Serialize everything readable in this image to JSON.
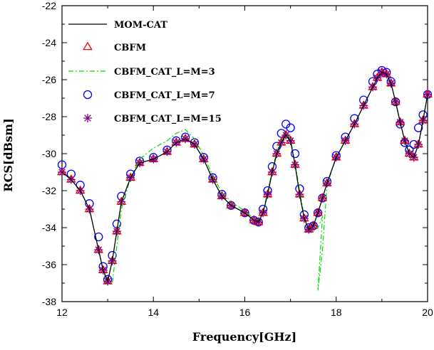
{
  "chart_data": {
    "type": "line",
    "title": "",
    "xlabel": "Frequency[GHz]",
    "ylabel": "RCS[dBsm]",
    "xlim": [
      12,
      20
    ],
    "ylim": [
      -38,
      -22
    ],
    "xticks": [
      12,
      14,
      16,
      18,
      20
    ],
    "yticks": [
      -38,
      -36,
      -34,
      -32,
      -30,
      -28,
      -26,
      -24,
      -22
    ],
    "xtick_labels": [
      "12",
      "14",
      "16",
      "18",
      "20"
    ],
    "ytick_labels": [
      "-38",
      "-36",
      "-34",
      "-32",
      "-30",
      "-28",
      "-26",
      "-24",
      "-22"
    ],
    "legend_position": "top-left",
    "series_colors": {
      "MOM-CAT": "#000000",
      "CBFM": "#ff0000",
      "CBFM_CAT_L=M=3": "#00dd00",
      "CBFM_CAT_L=M=7": "#0000ff",
      "CBFM_CAT_L=M=15": "#800080"
    },
    "series": [
      {
        "name": "MOM-CAT",
        "style": "solid line",
        "x": [
          12.0,
          12.2,
          12.4,
          12.6,
          12.8,
          12.9,
          13.0,
          13.1,
          13.2,
          13.3,
          13.5,
          13.7,
          14.0,
          14.3,
          14.5,
          14.7,
          14.9,
          15.1,
          15.3,
          15.5,
          15.7,
          16.0,
          16.2,
          16.3,
          16.4,
          16.5,
          16.6,
          16.7,
          16.8,
          16.9,
          17.0,
          17.1,
          17.2,
          17.3,
          17.4,
          17.5,
          17.6,
          17.7,
          17.8,
          18.0,
          18.2,
          18.4,
          18.6,
          18.8,
          18.9,
          19.0,
          19.1,
          19.2,
          19.3,
          19.4,
          19.5,
          19.6,
          19.7,
          19.8,
          19.9,
          20.0
        ],
        "values": [
          -31.0,
          -31.4,
          -32.0,
          -33.0,
          -35.2,
          -36.3,
          -36.9,
          -35.8,
          -34.2,
          -32.6,
          -31.3,
          -30.5,
          -30.3,
          -29.9,
          -29.4,
          -29.2,
          -29.5,
          -30.3,
          -31.4,
          -32.3,
          -32.8,
          -33.2,
          -33.6,
          -33.7,
          -33.2,
          -32.2,
          -31.0,
          -30.0,
          -29.4,
          -29.0,
          -29.3,
          -30.6,
          -32.2,
          -33.5,
          -34.1,
          -33.9,
          -33.2,
          -32.4,
          -31.6,
          -30.2,
          -29.3,
          -28.4,
          -27.4,
          -26.4,
          -25.9,
          -25.6,
          -25.7,
          -26.2,
          -27.2,
          -28.3,
          -29.3,
          -30.0,
          -30.2,
          -29.5,
          -28.2,
          -26.8
        ]
      },
      {
        "name": "CBFM",
        "style": "open triangle markers",
        "x": [
          12.0,
          12.2,
          12.4,
          12.6,
          12.8,
          12.9,
          13.0,
          13.1,
          13.2,
          13.3,
          13.5,
          13.7,
          14.0,
          14.3,
          14.5,
          14.7,
          14.9,
          15.1,
          15.3,
          15.5,
          15.7,
          16.0,
          16.2,
          16.3,
          16.4,
          16.5,
          16.6,
          16.7,
          16.8,
          16.9,
          17.0,
          17.1,
          17.2,
          17.3,
          17.4,
          17.5,
          17.6,
          17.7,
          17.8,
          18.0,
          18.2,
          18.4,
          18.6,
          18.8,
          18.9,
          19.0,
          19.1,
          19.2,
          19.3,
          19.4,
          19.5,
          19.6,
          19.7,
          19.8,
          19.9,
          20.0
        ],
        "values": [
          -31.0,
          -31.4,
          -32.0,
          -33.0,
          -35.2,
          -36.3,
          -36.9,
          -35.8,
          -34.2,
          -32.6,
          -31.3,
          -30.5,
          -30.3,
          -29.9,
          -29.4,
          -29.2,
          -29.5,
          -30.3,
          -31.4,
          -32.3,
          -32.8,
          -33.2,
          -33.6,
          -33.7,
          -33.2,
          -32.2,
          -31.0,
          -30.0,
          -29.4,
          -29.0,
          -29.3,
          -30.6,
          -32.2,
          -33.5,
          -34.1,
          -33.9,
          -33.2,
          -32.4,
          -31.6,
          -30.2,
          -29.3,
          -28.4,
          -27.4,
          -26.4,
          -25.9,
          -25.6,
          -25.7,
          -26.2,
          -27.2,
          -28.3,
          -29.3,
          -30.0,
          -30.2,
          -29.5,
          -28.2,
          -26.8
        ]
      },
      {
        "name": "CBFM_CAT_L=M=3",
        "style": "dash-dot line",
        "x": [
          12.0,
          12.2,
          12.4,
          12.6,
          12.8,
          12.9,
          13.0,
          13.1,
          13.2,
          13.3,
          13.5,
          13.7,
          14.0,
          14.3,
          14.5,
          14.7,
          14.9,
          15.1,
          15.3,
          15.5,
          15.7,
          16.0,
          16.2,
          16.3,
          16.4,
          16.5,
          16.6,
          16.7,
          16.8,
          16.9,
          17.0,
          17.1,
          17.2,
          17.3,
          17.4,
          17.5,
          17.6,
          17.7,
          17.6,
          17.7,
          17.8,
          18.0,
          18.2,
          18.4,
          18.6,
          18.8,
          18.9,
          19.0,
          19.1,
          19.2,
          19.3,
          19.4,
          19.5,
          19.6,
          19.7,
          19.8,
          19.9,
          20.0
        ],
        "values": [
          -31.0,
          -31.4,
          -32.0,
          -33.0,
          -35.2,
          -36.3,
          -37.0,
          -37.0,
          -35.0,
          -33.0,
          -31.3,
          -30.3,
          -29.7,
          -29.3,
          -28.9,
          -28.7,
          -29.2,
          -30.1,
          -31.2,
          -32.1,
          -32.6,
          -33.1,
          -33.5,
          -33.6,
          -33.1,
          -32.1,
          -30.9,
          -29.9,
          -29.3,
          -28.9,
          -29.2,
          -30.5,
          -32.0,
          -33.4,
          -34.1,
          -34.2,
          -34.0,
          -33.4,
          -37.4,
          -35.2,
          -31.7,
          -30.2,
          -29.3,
          -28.4,
          -27.4,
          -26.4,
          -25.9,
          -25.6,
          -25.7,
          -26.2,
          -27.2,
          -28.3,
          -29.3,
          -30.0,
          -30.2,
          -29.5,
          -28.2,
          -26.8
        ]
      },
      {
        "name": "CBFM_CAT_L=M=7",
        "style": "open circle markers",
        "x": [
          12.0,
          12.2,
          12.4,
          12.6,
          12.8,
          12.9,
          13.0,
          13.1,
          13.2,
          13.3,
          13.5,
          13.7,
          14.0,
          14.3,
          14.5,
          14.7,
          14.9,
          15.1,
          15.3,
          15.5,
          15.7,
          16.0,
          16.2,
          16.3,
          16.4,
          16.5,
          16.6,
          16.7,
          16.8,
          16.9,
          17.0,
          17.1,
          17.2,
          17.3,
          17.4,
          17.5,
          17.6,
          17.7,
          17.8,
          18.0,
          18.2,
          18.4,
          18.6,
          18.8,
          18.9,
          19.0,
          19.1,
          19.2,
          19.3,
          19.4,
          19.5,
          19.6,
          19.7,
          19.8,
          19.9,
          20.0
        ],
        "values": [
          -30.6,
          -31.1,
          -31.7,
          -32.7,
          -34.5,
          -36.1,
          -36.8,
          -35.5,
          -33.8,
          -32.3,
          -31.1,
          -30.4,
          -30.2,
          -29.8,
          -29.3,
          -29.1,
          -29.4,
          -30.2,
          -31.3,
          -32.2,
          -32.8,
          -33.2,
          -33.6,
          -33.7,
          -33.0,
          -32.0,
          -30.7,
          -29.6,
          -28.9,
          -28.4,
          -28.6,
          -30.0,
          -31.9,
          -33.3,
          -34.0,
          -33.9,
          -33.2,
          -32.4,
          -31.5,
          -30.1,
          -29.1,
          -28.1,
          -27.1,
          -26.1,
          -25.7,
          -25.5,
          -25.6,
          -26.1,
          -27.2,
          -28.4,
          -29.4,
          -29.8,
          -29.5,
          -28.6,
          -27.9,
          -26.8
        ]
      },
      {
        "name": "CBFM_CAT_L=M=15",
        "style": "asterisk markers",
        "x": [
          12.0,
          12.2,
          12.4,
          12.6,
          12.8,
          12.9,
          13.0,
          13.1,
          13.2,
          13.3,
          13.5,
          13.7,
          14.0,
          14.3,
          14.5,
          14.7,
          14.9,
          15.1,
          15.3,
          15.5,
          15.7,
          16.0,
          16.2,
          16.3,
          16.4,
          16.5,
          16.6,
          16.7,
          16.8,
          16.9,
          17.0,
          17.1,
          17.2,
          17.3,
          17.4,
          17.5,
          17.6,
          17.7,
          17.8,
          18.0,
          18.2,
          18.4,
          18.6,
          18.8,
          18.9,
          19.0,
          19.1,
          19.2,
          19.3,
          19.4,
          19.5,
          19.6,
          19.7,
          19.8,
          19.9,
          20.0
        ],
        "values": [
          -31.0,
          -31.4,
          -32.0,
          -33.0,
          -35.2,
          -36.3,
          -36.9,
          -35.8,
          -34.2,
          -32.6,
          -31.3,
          -30.5,
          -30.3,
          -29.9,
          -29.4,
          -29.2,
          -29.5,
          -30.3,
          -31.4,
          -32.3,
          -32.8,
          -33.2,
          -33.6,
          -33.7,
          -33.2,
          -32.2,
          -31.0,
          -30.0,
          -29.4,
          -29.0,
          -29.3,
          -30.6,
          -32.2,
          -33.5,
          -34.1,
          -33.9,
          -33.2,
          -32.4,
          -31.6,
          -30.2,
          -29.3,
          -28.4,
          -27.4,
          -26.4,
          -25.9,
          -25.6,
          -25.7,
          -26.2,
          -27.2,
          -28.3,
          -29.3,
          -30.0,
          -30.2,
          -29.5,
          -28.2,
          -26.8
        ]
      }
    ]
  }
}
